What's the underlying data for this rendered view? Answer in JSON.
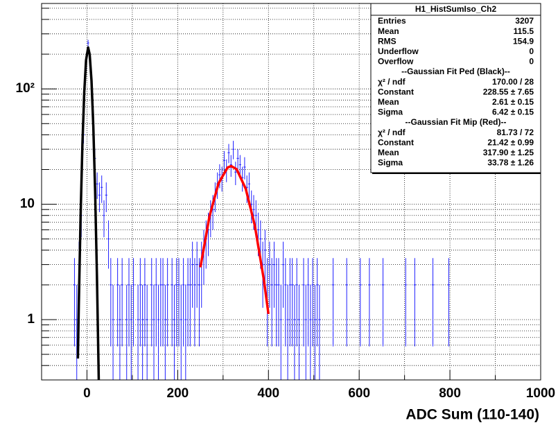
{
  "chart_data": {
    "type": "histogram",
    "x_label": "ADC Sum (110-140)",
    "log_y": true,
    "grid": true,
    "color": "#1f1fff",
    "xlim": [
      -100,
      1000
    ],
    "ylim": [
      0.3,
      550
    ],
    "xticks": [
      0,
      200,
      400,
      600,
      800,
      1000
    ],
    "yticks": [
      1,
      10,
      {
        "value": 100,
        "label": "10²"
      }
    ],
    "x_minor_grid": [
      -100,
      100,
      300,
      500,
      700,
      900
    ],
    "y_minor_grid": [
      0.4,
      0.5,
      0.6,
      0.7,
      0.8,
      0.9,
      2,
      3,
      4,
      5,
      6,
      7,
      8,
      9,
      20,
      30,
      40,
      50,
      60,
      70,
      80,
      90,
      200,
      300,
      400,
      500
    ],
    "bins": [
      -30,
      -25,
      -20,
      -15,
      -10,
      -5,
      0,
      5,
      10,
      15,
      20,
      25,
      30,
      35,
      40,
      45,
      50,
      55,
      60,
      65,
      70,
      75,
      80,
      85,
      90,
      95,
      100,
      105,
      110,
      115,
      120,
      125,
      130,
      135,
      140,
      145,
      150,
      155,
      160,
      165,
      170,
      175,
      180,
      185,
      190,
      195,
      200,
      205,
      210,
      215,
      220,
      225,
      230,
      235,
      240,
      245,
      250,
      255,
      260,
      265,
      270,
      275,
      280,
      285,
      290,
      295,
      300,
      305,
      310,
      315,
      320,
      325,
      330,
      335,
      340,
      345,
      350,
      355,
      360,
      365,
      370,
      375,
      380,
      385,
      390,
      395,
      400,
      405,
      410,
      415,
      420,
      425,
      430,
      435,
      440,
      445,
      450,
      455,
      460,
      465,
      470,
      475,
      480,
      485,
      490,
      495,
      500,
      505,
      510,
      515,
      520,
      525,
      530,
      535,
      540,
      545,
      550,
      555,
      560,
      565,
      570,
      575,
      580,
      585,
      590,
      595,
      600,
      605,
      610,
      615,
      620,
      625,
      630,
      635,
      640,
      645,
      650,
      655,
      660,
      665,
      670,
      675,
      680,
      685,
      690,
      695,
      700,
      705,
      710,
      715,
      720,
      725,
      730,
      735,
      740,
      745,
      750,
      755,
      760,
      765,
      770,
      775,
      780,
      785,
      790,
      795,
      800
    ],
    "counts": [
      2,
      1,
      3,
      8,
      40,
      150,
      250,
      160,
      60,
      25,
      15,
      12,
      14,
      8,
      12,
      5,
      2,
      1,
      0,
      2,
      1,
      2,
      0,
      1,
      2,
      1,
      2,
      0,
      1,
      2,
      1,
      2,
      1,
      0,
      2,
      1,
      2,
      1,
      2,
      2,
      1,
      2,
      0,
      2,
      1,
      2,
      2,
      1,
      2,
      1,
      2,
      2,
      3,
      2,
      3,
      2,
      3,
      4,
      5,
      6,
      8,
      9,
      12,
      15,
      18,
      17,
      24,
      20,
      28,
      22,
      30,
      19,
      25,
      22,
      17,
      21,
      14,
      15,
      10,
      9,
      8,
      6,
      5,
      3,
      4,
      2,
      3,
      2,
      3,
      2,
      2,
      1,
      3,
      2,
      1,
      2,
      2,
      1,
      2,
      1,
      0,
      2,
      1,
      2,
      1,
      2,
      1,
      2,
      1,
      0,
      0,
      0,
      0,
      0,
      2,
      0,
      0,
      0,
      0,
      0,
      2,
      0,
      0,
      0,
      0,
      0,
      2,
      0,
      0,
      0,
      2,
      0,
      0,
      0,
      0,
      0,
      2,
      0,
      0,
      0,
      0,
      0,
      0,
      0,
      0,
      0,
      2,
      0,
      0,
      0,
      2,
      0,
      0,
      0,
      0,
      0,
      0,
      0,
      2,
      0,
      0,
      0,
      0,
      0,
      0,
      2
    ],
    "fits": [
      {
        "color": "#000000",
        "x": [
          -20,
          -18,
          -14,
          -10,
          -6,
          -2,
          2.61,
          6,
          10,
          14,
          18,
          22,
          26
        ],
        "values": [
          0.46,
          1.32,
          8.0,
          33.2,
          93,
          177,
          228.55,
          199,
          118,
          47.4,
          12.9,
          2.39,
          0.3
        ]
      },
      {
        "color": "#ff0000",
        "x": [
          250,
          270,
          290,
          310,
          317.9,
          330,
          350,
          370,
          390,
          400
        ],
        "values": [
          2.84,
          7.84,
          15.2,
          20.8,
          21.42,
          20.1,
          13.6,
          6.52,
          2.2,
          1.12
        ]
      }
    ],
    "stats": {
      "title": "H1_HistSumIso_Ch2",
      "rows": [
        [
          "Entries",
          "3207"
        ],
        [
          "Mean",
          "115.5"
        ],
        [
          "RMS",
          "154.9"
        ],
        [
          "Underflow",
          "0"
        ],
        [
          "Overflow",
          "0"
        ],
        [
          "--Gaussian Fit Ped (Black)--"
        ],
        [
          "χ² / ndf",
          "170.00 / 28"
        ],
        [
          "Constant",
          "228.55 ± 7.65"
        ],
        [
          "Mean",
          "2.61 ± 0.15"
        ],
        [
          "Sigma",
          "6.42 ± 0.15"
        ],
        [
          "--Gaussian Fit Mip (Red)--"
        ],
        [
          "χ² / ndf",
          "81.73 / 72"
        ],
        [
          "Constant",
          "21.42 ± 0.99"
        ],
        [
          "Mean",
          "317.90 ± 1.25"
        ],
        [
          "Sigma",
          "33.78 ± 1.26"
        ]
      ]
    }
  }
}
